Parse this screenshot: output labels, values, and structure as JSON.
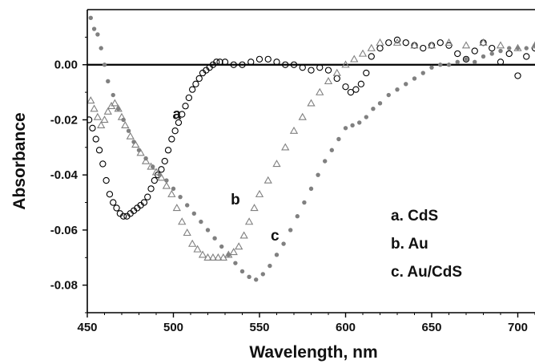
{
  "chart_data": {
    "type": "scatter",
    "title": "",
    "xlabel": "Wavelength, nm",
    "ylabel": "Absorbance",
    "xlim": [
      450,
      710
    ],
    "ylim": [
      -0.09,
      0.02
    ],
    "xticks": [
      "450",
      "500",
      "550",
      "600",
      "650",
      "700"
    ],
    "yticks": [
      "0.00",
      "-0.02",
      "-0.04",
      "-0.06",
      "-0.08"
    ],
    "zero_line": true,
    "grid": false,
    "legend": {
      "position": "lower-right",
      "entries": [
        "a.  CdS",
        "b.  Au",
        "c.  Au/CdS"
      ]
    },
    "annotations": [
      {
        "text": "a",
        "x": 502,
        "y": -0.018
      },
      {
        "text": "b",
        "x": 536,
        "y": -0.049
      },
      {
        "text": "c",
        "x": 559,
        "y": -0.062
      }
    ],
    "series": [
      {
        "name": "a.  CdS",
        "marker": "open-circle",
        "color": "#000000",
        "x": [
          451,
          453,
          455,
          457,
          459,
          461,
          463,
          465,
          467,
          469,
          471,
          473,
          475,
          477,
          479,
          481,
          483,
          485,
          487,
          489,
          491,
          493,
          495,
          497,
          499,
          501,
          503,
          505,
          507,
          509,
          511,
          513,
          515,
          517,
          519,
          521,
          523,
          525,
          527,
          530,
          535,
          540,
          545,
          550,
          555,
          560,
          565,
          570,
          575,
          580,
          585,
          590,
          595,
          600,
          603,
          606,
          609,
          612,
          615,
          620,
          625,
          630,
          635,
          640,
          645,
          650,
          655,
          660,
          665,
          670,
          675,
          680,
          685,
          690,
          695,
          700,
          705,
          710
        ],
        "y": [
          -0.02,
          -0.023,
          -0.027,
          -0.031,
          -0.036,
          -0.042,
          -0.047,
          -0.05,
          -0.052,
          -0.054,
          -0.055,
          -0.055,
          -0.054,
          -0.053,
          -0.052,
          -0.051,
          -0.05,
          -0.048,
          -0.045,
          -0.042,
          -0.04,
          -0.038,
          -0.035,
          -0.031,
          -0.027,
          -0.024,
          -0.021,
          -0.018,
          -0.015,
          -0.012,
          -0.009,
          -0.007,
          -0.005,
          -0.003,
          -0.002,
          -0.001,
          0.0,
          0.001,
          0.001,
          0.001,
          0.0,
          0.0,
          0.001,
          0.002,
          0.002,
          0.001,
          0.0,
          0.0,
          -0.001,
          -0.002,
          -0.001,
          -0.002,
          -0.005,
          -0.008,
          -0.01,
          -0.009,
          -0.007,
          -0.003,
          0.003,
          0.006,
          0.008,
          0.009,
          0.008,
          0.007,
          0.006,
          0.007,
          0.008,
          0.007,
          0.004,
          0.002,
          0.005,
          0.008,
          0.006,
          0.001,
          0.004,
          -0.004,
          0.003,
          0.006
        ]
      },
      {
        "name": "b.  Au",
        "marker": "open-triangle",
        "color": "#808080",
        "x": [
          452,
          454,
          456,
          458,
          460,
          462,
          464,
          466,
          468,
          470,
          472,
          475,
          478,
          481,
          484,
          487,
          490,
          493,
          496,
          499,
          502,
          505,
          508,
          511,
          514,
          517,
          520,
          523,
          526,
          529,
          532,
          535,
          538,
          541,
          544,
          547,
          550,
          555,
          560,
          565,
          570,
          575,
          580,
          585,
          590,
          595,
          600,
          605,
          610,
          615,
          620,
          630,
          640,
          650,
          660,
          670,
          680,
          690,
          700,
          710
        ],
        "y": [
          -0.013,
          -0.016,
          -0.019,
          -0.022,
          -0.02,
          -0.017,
          -0.015,
          -0.014,
          -0.016,
          -0.019,
          -0.022,
          -0.026,
          -0.029,
          -0.032,
          -0.035,
          -0.037,
          -0.039,
          -0.041,
          -0.044,
          -0.047,
          -0.052,
          -0.057,
          -0.061,
          -0.065,
          -0.067,
          -0.069,
          -0.07,
          -0.07,
          -0.07,
          -0.07,
          -0.069,
          -0.068,
          -0.066,
          -0.062,
          -0.057,
          -0.052,
          -0.047,
          -0.042,
          -0.036,
          -0.03,
          -0.024,
          -0.019,
          -0.014,
          -0.01,
          -0.006,
          -0.003,
          0.0,
          0.002,
          0.004,
          0.006,
          0.008,
          0.008,
          0.007,
          0.007,
          0.008,
          0.007,
          0.008,
          0.007,
          0.006,
          0.007
        ]
      },
      {
        "name": "c.  Au/CdS",
        "marker": "filled-circle",
        "color": "#808080",
        "x": [
          452,
          454,
          456,
          458,
          460,
          462,
          465,
          468,
          471,
          474,
          477,
          480,
          484,
          488,
          492,
          496,
          500,
          504,
          508,
          512,
          516,
          520,
          524,
          528,
          532,
          536,
          540,
          544,
          548,
          552,
          556,
          560,
          564,
          568,
          572,
          576,
          580,
          584,
          588,
          592,
          596,
          600,
          604,
          608,
          612,
          616,
          620,
          625,
          630,
          635,
          640,
          645,
          650,
          655,
          660,
          665,
          670,
          675,
          680,
          685,
          690,
          695,
          700,
          705,
          710
        ],
        "y": [
          0.017,
          0.013,
          0.011,
          0.006,
          0.0,
          -0.006,
          -0.011,
          -0.016,
          -0.02,
          -0.024,
          -0.028,
          -0.031,
          -0.034,
          -0.037,
          -0.04,
          -0.042,
          -0.045,
          -0.048,
          -0.051,
          -0.054,
          -0.057,
          -0.06,
          -0.063,
          -0.066,
          -0.069,
          -0.072,
          -0.075,
          -0.077,
          -0.078,
          -0.076,
          -0.073,
          -0.069,
          -0.065,
          -0.06,
          -0.055,
          -0.05,
          -0.045,
          -0.04,
          -0.035,
          -0.031,
          -0.027,
          -0.023,
          -0.022,
          -0.021,
          -0.019,
          -0.016,
          -0.014,
          -0.011,
          -0.009,
          -0.007,
          -0.005,
          -0.003,
          -0.001,
          0.0,
          0.0,
          0.001,
          0.002,
          0.001,
          0.003,
          0.004,
          0.005,
          0.006,
          0.006,
          0.006,
          0.007
        ]
      }
    ]
  }
}
